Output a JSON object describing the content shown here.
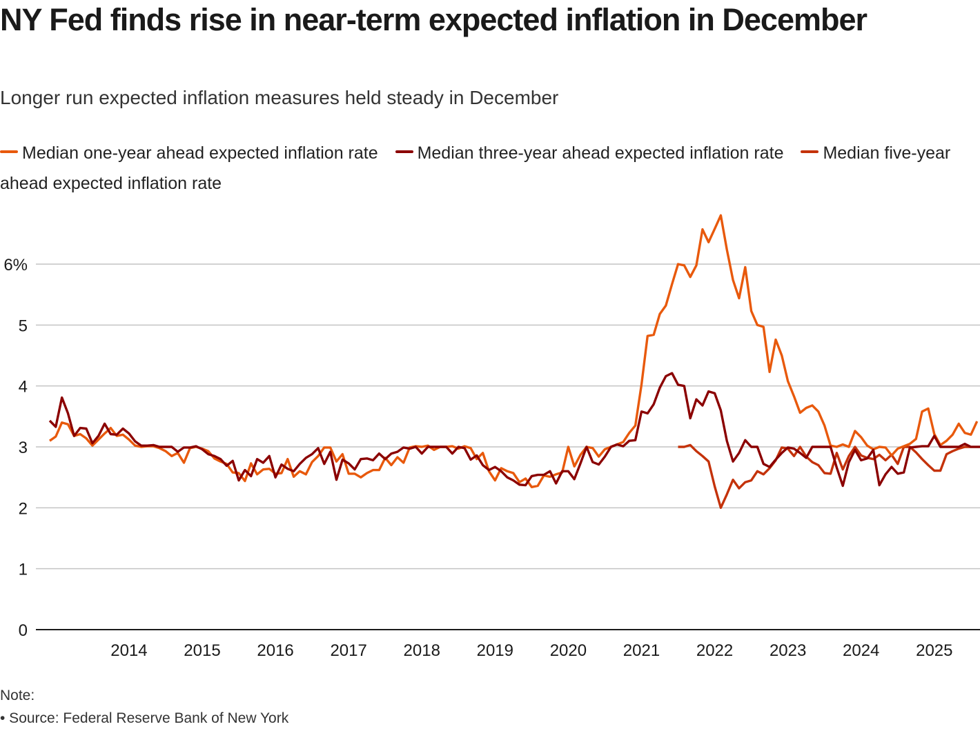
{
  "header": {
    "title": "NY Fed finds rise in near-term expected inflation in December",
    "subtitle": "Longer run expected inflation measures held steady in December"
  },
  "footer": {
    "note_label": "Note:",
    "source": "• Source: Federal Reserve Bank of New York"
  },
  "chart_data": {
    "type": "line",
    "title": "NY Fed finds rise in near-term expected inflation in December",
    "subtitle": "Longer run expected inflation measures held steady in December",
    "xlabel": "",
    "ylabel": "",
    "x_start": "2013-06",
    "x_end": "2025-12",
    "frequency": "monthly",
    "ylim": [
      0,
      6.8
    ],
    "yticks": [
      0,
      1,
      2,
      3,
      4,
      5,
      6
    ],
    "ytick_labels": [
      "0",
      "1",
      "2",
      "3",
      "4",
      "5",
      "6%"
    ],
    "xtick_labels": [
      "2014",
      "2015",
      "2016",
      "2017",
      "2018",
      "2019",
      "2020",
      "2021",
      "2022",
      "2023",
      "2024",
      "2025"
    ],
    "grid": true,
    "legend_position": "top",
    "series": [
      {
        "name": "Median one-year ahead expected inflation rate",
        "color": "#e8590c",
        "start": "2013-06",
        "values": [
          3.1,
          3.17,
          3.4,
          3.37,
          3.18,
          3.21,
          3.14,
          3.02,
          3.12,
          3.22,
          3.31,
          3.18,
          3.2,
          3.12,
          3.02,
          3.0,
          3.01,
          3.01,
          2.98,
          2.93,
          2.85,
          2.9,
          2.74,
          2.98,
          3.0,
          2.97,
          2.93,
          2.81,
          2.76,
          2.72,
          2.58,
          2.57,
          2.44,
          2.73,
          2.55,
          2.63,
          2.64,
          2.56,
          2.57,
          2.8,
          2.51,
          2.6,
          2.55,
          2.75,
          2.85,
          2.99,
          2.99,
          2.76,
          2.88,
          2.56,
          2.56,
          2.5,
          2.57,
          2.62,
          2.62,
          2.82,
          2.7,
          2.83,
          2.74,
          2.99,
          3.01,
          3.0,
          3.02,
          2.95,
          3.0,
          3.0,
          3.01,
          2.97,
          3.01,
          2.98,
          2.8,
          2.9,
          2.6,
          2.45,
          2.65,
          2.6,
          2.57,
          2.42,
          2.48,
          2.34,
          2.36,
          2.53,
          2.51,
          2.55,
          2.58,
          3.0,
          2.68,
          2.87,
          3.0,
          2.98,
          2.84,
          2.96,
          3.0,
          3.04,
          3.08,
          3.23,
          3.35,
          4.02,
          4.82,
          4.84,
          5.18,
          5.32,
          5.67,
          6.0,
          5.98,
          5.79,
          5.98,
          6.57,
          6.36,
          6.58,
          6.8,
          6.24,
          5.74,
          5.44,
          5.95,
          5.23,
          5.0,
          4.97,
          4.23,
          4.76,
          4.5,
          4.08,
          3.83,
          3.56,
          3.64,
          3.68,
          3.58,
          3.35,
          3.02,
          3.0,
          3.04,
          3.0,
          3.26,
          3.16,
          3.02,
          2.96,
          3.0,
          2.99,
          2.86,
          2.97,
          3.01,
          3.05,
          3.13,
          3.58,
          3.63,
          3.21,
          3.03,
          3.1,
          3.2,
          3.38,
          3.23,
          3.2,
          3.42
        ]
      },
      {
        "name": "Median three-year ahead expected inflation rate",
        "color": "#8b0000",
        "start": "2013-06",
        "values": [
          3.43,
          3.33,
          3.81,
          3.55,
          3.18,
          3.31,
          3.3,
          3.06,
          3.18,
          3.38,
          3.21,
          3.2,
          3.3,
          3.22,
          3.09,
          3.02,
          3.02,
          3.03,
          3.0,
          3.0,
          3.0,
          2.92,
          2.99,
          2.99,
          3.01,
          2.96,
          2.88,
          2.85,
          2.8,
          2.69,
          2.77,
          2.45,
          2.62,
          2.52,
          2.8,
          2.74,
          2.85,
          2.5,
          2.71,
          2.64,
          2.6,
          2.72,
          2.82,
          2.88,
          2.98,
          2.72,
          2.92,
          2.46,
          2.79,
          2.73,
          2.63,
          2.8,
          2.81,
          2.78,
          2.89,
          2.8,
          2.89,
          2.92,
          2.99,
          2.97,
          3.0,
          2.89,
          3.0,
          3.0,
          3.0,
          3.0,
          2.89,
          3.0,
          2.98,
          2.79,
          2.86,
          2.7,
          2.62,
          2.67,
          2.6,
          2.5,
          2.45,
          2.38,
          2.37,
          2.52,
          2.54,
          2.54,
          2.6,
          2.4,
          2.6,
          2.6,
          2.47,
          2.73,
          3.0,
          2.75,
          2.71,
          2.84,
          3.0,
          3.04,
          3.01,
          3.1,
          3.11,
          3.58,
          3.55,
          3.7,
          3.97,
          4.16,
          4.21,
          4.02,
          4.0,
          3.47,
          3.78,
          3.68,
          3.91,
          3.88,
          3.6,
          3.1,
          2.76,
          2.9,
          3.11,
          3.0,
          3.0,
          2.72,
          2.67,
          2.79,
          2.9,
          2.99,
          2.97,
          2.9,
          2.82,
          3.0,
          3.0,
          3.0,
          3.0,
          2.66,
          2.36,
          2.75,
          2.95,
          2.78,
          2.81,
          2.95,
          2.37,
          2.55,
          2.67,
          2.56,
          2.58,
          2.99,
          3.0,
          3.01,
          3.01,
          3.18,
          3.0,
          3.0,
          3.0,
          3.0,
          3.05,
          3.0,
          3.0,
          3.0
        ]
      },
      {
        "name": "Median five-year ahead expected inflation rate",
        "color": "#c4320a",
        "start": "2022-01",
        "values": [
          3.0,
          3.0,
          3.03,
          2.93,
          2.85,
          2.76,
          2.35,
          2.0,
          2.22,
          2.46,
          2.32,
          2.42,
          2.45,
          2.6,
          2.55,
          2.65,
          2.78,
          2.99,
          2.97,
          2.85,
          3.0,
          2.84,
          2.75,
          2.7,
          2.57,
          2.56,
          2.9,
          2.63,
          2.85,
          3.0,
          2.86,
          2.82,
          2.8,
          2.87,
          2.78,
          2.87,
          2.72,
          3.0,
          3.0,
          2.91,
          2.8,
          2.7,
          2.61,
          2.61,
          2.88,
          2.93,
          2.97,
          3.0,
          3.0
        ]
      }
    ]
  }
}
